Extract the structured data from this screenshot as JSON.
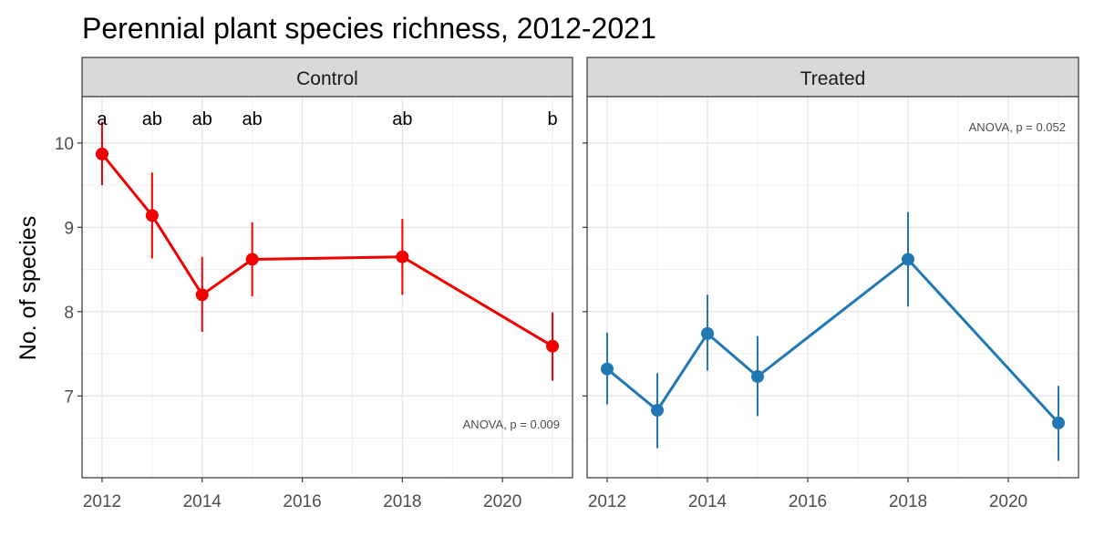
{
  "chart_data": {
    "type": "line",
    "title": "Perennial plant species richness, 2012-2021",
    "ylabel": "No. of species",
    "xlabel": "",
    "xlim": [
      2011.6,
      2021.4
    ],
    "ylim": [
      6.03,
      10.55
    ],
    "xticks": [
      2012,
      2014,
      2016,
      2018,
      2020
    ],
    "xtick_labels": [
      "2012",
      "2014",
      "2016",
      "2018",
      "2020"
    ],
    "yticks": [
      7,
      8,
      9,
      10
    ],
    "ytick_labels": [
      "7",
      "8",
      "9",
      "10"
    ],
    "grid": true,
    "panels": [
      {
        "strip": "Control",
        "color": "#f20000",
        "annotation": "ANOVA, p = 0.009",
        "points": [
          {
            "x": 2012,
            "y": 9.87,
            "ymin": 9.5,
            "ymax": 10.25,
            "letter": "a"
          },
          {
            "x": 2013,
            "y": 9.14,
            "ymin": 8.63,
            "ymax": 9.65,
            "letter": "ab"
          },
          {
            "x": 2014,
            "y": 8.2,
            "ymin": 7.76,
            "ymax": 8.65,
            "letter": "ab"
          },
          {
            "x": 2015,
            "y": 8.62,
            "ymin": 8.18,
            "ymax": 9.06,
            "letter": "ab"
          },
          {
            "x": 2018,
            "y": 8.65,
            "ymin": 8.2,
            "ymax": 9.1,
            "letter": "ab"
          },
          {
            "x": 2021,
            "y": 7.59,
            "ymin": 7.18,
            "ymax": 7.99,
            "letter": "b"
          }
        ]
      },
      {
        "strip": "Treated",
        "color": "#1f78b4",
        "annotation": "ANOVA, p = 0.052",
        "points": [
          {
            "x": 2012,
            "y": 7.32,
            "ymin": 6.9,
            "ymax": 7.75
          },
          {
            "x": 2013,
            "y": 6.83,
            "ymin": 6.38,
            "ymax": 7.27
          },
          {
            "x": 2014,
            "y": 7.74,
            "ymin": 7.3,
            "ymax": 8.2
          },
          {
            "x": 2015,
            "y": 7.23,
            "ymin": 6.76,
            "ymax": 7.71
          },
          {
            "x": 2018,
            "y": 8.62,
            "ymin": 8.06,
            "ymax": 9.18
          },
          {
            "x": 2021,
            "y": 6.68,
            "ymin": 6.23,
            "ymax": 7.12
          }
        ]
      }
    ]
  }
}
